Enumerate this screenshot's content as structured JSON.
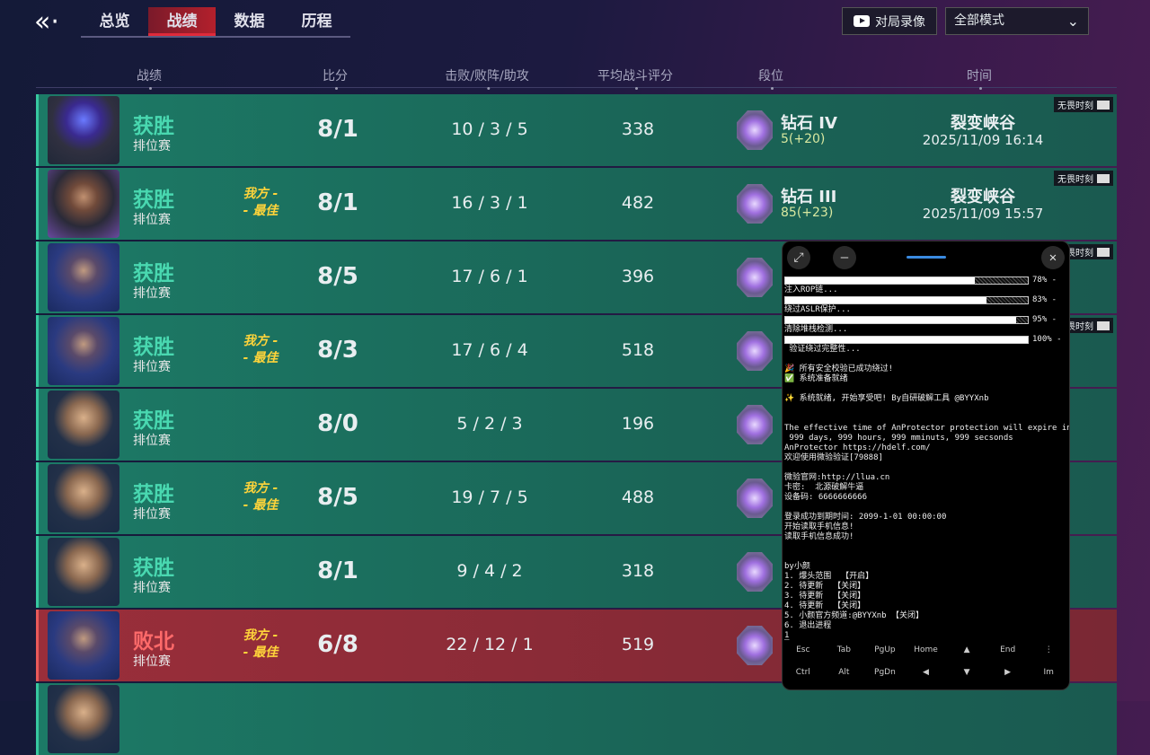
{
  "nav": {
    "back_icon": "back-chevron-icon",
    "tabs": [
      "总览",
      "战绩",
      "数据",
      "历程"
    ],
    "active_tab": 1
  },
  "toolbar": {
    "replay_label": "对局录像",
    "mode_value": "全部模式"
  },
  "headers": [
    "战绩",
    "比分",
    "击败/败阵/助攻",
    "平均战斗评分",
    "段位",
    "时间"
  ],
  "rows": [
    {
      "result": "获胜",
      "mode": "排位赛",
      "mvp": "",
      "score": "8/1",
      "kda": "10 / 3 / 5",
      "rating": "338",
      "rank": "钻石 IV",
      "points": "5(+20)",
      "map": "裂变峡谷",
      "time": "2025/11/09 16:14",
      "badge": "无畏时刻",
      "hero": "h1",
      "loss": false
    },
    {
      "result": "获胜",
      "mode": "排位赛",
      "mvp": "我方 -\n- 最佳",
      "score": "8/1",
      "kda": "16 / 3 / 1",
      "rating": "482",
      "rank": "钻石 III",
      "points": "85(+23)",
      "map": "裂变峡谷",
      "time": "2025/11/09 15:57",
      "badge": "无畏时刻",
      "hero": "h2",
      "loss": false
    },
    {
      "result": "获胜",
      "mode": "排位赛",
      "mvp": "",
      "score": "8/5",
      "kda": "17 / 6 / 1",
      "rating": "396",
      "badge": "无畏时刻",
      "hero": "h3",
      "loss": false
    },
    {
      "result": "获胜",
      "mode": "排位赛",
      "mvp": "我方 -\n- 最佳",
      "score": "8/3",
      "kda": "17 / 6 / 4",
      "rating": "518",
      "badge": "无畏时刻",
      "hero": "h3",
      "loss": false
    },
    {
      "result": "获胜",
      "mode": "排位赛",
      "mvp": "",
      "score": "8/0",
      "kda": "5 / 2 / 3",
      "rating": "196",
      "hero": "h0",
      "loss": false
    },
    {
      "result": "获胜",
      "mode": "排位赛",
      "mvp": "我方 -\n- 最佳",
      "score": "8/5",
      "kda": "19 / 7 / 5",
      "rating": "488",
      "hero": "h0",
      "loss": false
    },
    {
      "result": "获胜",
      "mode": "排位赛",
      "mvp": "",
      "score": "8/1",
      "kda": "9 / 4 / 2",
      "rating": "318",
      "hero": "h0",
      "loss": false
    },
    {
      "result": "败北",
      "mode": "排位赛",
      "mvp": "我方 -\n- 最佳",
      "score": "6/8",
      "kda": "22 / 12 / 1",
      "rating": "519",
      "hero": "h3",
      "loss": true
    },
    {
      "result": "",
      "mode": "",
      "mvp": "",
      "score": "",
      "kda": "",
      "rating": "",
      "hero": "h0",
      "loss": false
    }
  ],
  "terminal": {
    "progress": [
      {
        "pct": 78,
        "label": "78% -",
        "after": "注入ROP链..."
      },
      {
        "pct": 83,
        "label": "83% -",
        "after": "绕过ASLR保护..."
      },
      {
        "pct": 95,
        "label": "95% -",
        "after": "清除堆栈检测..."
      },
      {
        "pct": 100,
        "label": "100% -",
        "after": " 验证绕过完整性..."
      }
    ],
    "lines": [
      "",
      "🎉 所有安全校验已成功绕过!",
      "✅ 系统准备就绪",
      "",
      "✨ 系统就绪, 开始享受吧! By自研破解工具 @BYYXnb",
      "",
      "",
      "The effective time of AnProtector protection will expire in",
      " 999 days, 999 hours, 999 mminuts, 999 secsonds",
      "AnProtector https://hdelf.com/",
      "欢迎使用微验验证[79888]",
      "",
      "微验官网:http://llua.cn",
      "卡密:  北源破解牛逼",
      "设备码: 6666666666",
      "",
      "登录成功到期时间: 2099-1-01 00:00:00",
      "开始读取手机信息!",
      "读取手机信息成功!",
      "",
      "",
      "by小颜",
      "1. 爆头范围  【开启】",
      "2. 待更新  【关闭】",
      "3. 待更新  【关闭】",
      "4. 待更新  【关闭】",
      "5. 小颜官方频道:@BYYXnb 【关闭】",
      "6. 退出进程",
      "1",
      "█"
    ],
    "keys": [
      "Esc",
      "Tab",
      "PgUp",
      "Home",
      "▲",
      "End",
      "⋮",
      "Ctrl",
      "Alt",
      "PgDn",
      "◀",
      "▼",
      "▶",
      "Im"
    ]
  }
}
